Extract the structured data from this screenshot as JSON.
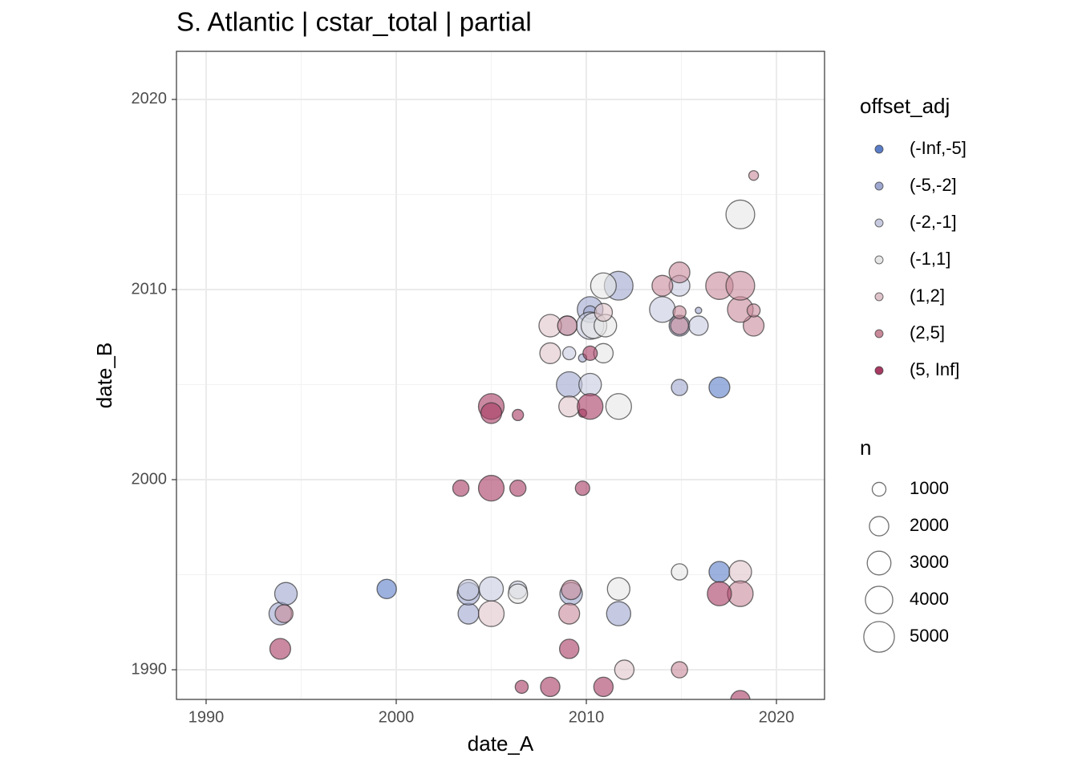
{
  "chart_data": {
    "type": "scatter",
    "title": "S. Atlantic | cstar_total | partial",
    "x_label": "date_A",
    "y_label": "date_B",
    "xlim": [
      1988.44,
      2022.53
    ],
    "ylim": [
      1988.44,
      2022.53
    ],
    "xticks": [
      1990,
      2000,
      2010,
      2020
    ],
    "yticks": [
      1990,
      2000,
      2010,
      2020
    ],
    "grid": true,
    "color_legend_title": "offset_adj",
    "size_legend_title": "n",
    "size_legend": [
      1000,
      2000,
      3000,
      4000,
      5000
    ],
    "series": [
      {
        "name": "(-Inf,-5]",
        "color": "#5a7dc8",
        "x": [
          1999.5,
          2017.0,
          2017.0
        ],
        "y": [
          1994.25,
          1995.15,
          2004.85
        ],
        "sizes": [
          2000,
          2300,
          2300
        ]
      },
      {
        "name": "(-5,-2]",
        "color": "#9ea7cf",
        "x": [
          1993.9,
          1994.2,
          2003.8,
          2011.7,
          2003.8,
          2009.2,
          2009.1,
          2014.9,
          2009.8,
          2014.9,
          2010.2,
          2010.2,
          2015.9,
          2011.7
        ],
        "y": [
          1992.95,
          1994.0,
          1992.95,
          1992.95,
          1994.0,
          1994.0,
          2005.0,
          2004.85,
          2006.4,
          2008.1,
          2008.95,
          2008.8,
          2008.9,
          2010.2
        ],
        "sizes": [
          2700,
          2700,
          2300,
          3100,
          2700,
          2700,
          3500,
          1400,
          350,
          2300,
          3500,
          900,
          220,
          4400
        ]
      },
      {
        "name": "(-2,-1]",
        "color": "#c7cadf",
        "x": [
          2003.8,
          2005.0,
          2006.4,
          2010.2,
          2009.1,
          2009.0,
          2010.2,
          2015.9,
          2014.0,
          2014.9
        ],
        "y": [
          1994.2,
          1994.25,
          1994.2,
          2005.0,
          2006.65,
          2008.1,
          2008.1,
          2008.1,
          2008.95,
          2010.2
        ],
        "sizes": [
          2300,
          3100,
          1700,
          2700,
          900,
          2000,
          4000,
          2000,
          3500,
          2300
        ]
      },
      {
        "name": "(-1,1]",
        "color": "#e6e6e6",
        "x": [
          2006.4,
          2011.7,
          2014.9,
          2011.7,
          2010.9,
          2010.4,
          2011.0,
          2010.9,
          2018.1
        ],
        "y": [
          1994.0,
          1994.25,
          1995.15,
          2003.85,
          2006.65,
          2008.1,
          2008.1,
          2010.2,
          2013.95
        ],
        "sizes": [
          2000,
          2700,
          1400,
          3500,
          2000,
          3500,
          2700,
          3500,
          4400
        ]
      },
      {
        "name": "(1,2]",
        "color": "#dfc3ca",
        "x": [
          2012.0,
          2005.0,
          2018.1,
          2009.1,
          2008.1,
          2008.1,
          2010.9
        ],
        "y": [
          1990.0,
          1992.95,
          1995.15,
          2003.85,
          2006.65,
          2008.1,
          2008.8
        ],
        "sizes": [
          2000,
          3500,
          2700,
          2300,
          2300,
          2700,
          1700
        ]
      },
      {
        "name": "(2,5]",
        "color": "#c88999",
        "x": [
          2014.9,
          1994.1,
          2009.1,
          2009.2,
          2018.1,
          2009.0,
          2014.9,
          2018.8,
          2014.9,
          2018.1,
          2018.8,
          2014.0,
          2014.9,
          2017.0,
          2018.1,
          2018.8
        ],
        "y": [
          1990.0,
          1992.95,
          1992.95,
          1994.2,
          1994.0,
          2008.1,
          2008.1,
          2008.1,
          2008.8,
          2008.95,
          2008.9,
          2010.2,
          2010.9,
          2010.2,
          2010.2,
          2016.0
        ],
        "sizes": [
          1400,
          1700,
          2300,
          2000,
          3500,
          2000,
          1700,
          2300,
          900,
          3500,
          900,
          2300,
          2300,
          4000,
          4400,
          500
        ]
      },
      {
        "name": "(5, Inf]",
        "color": "#a73a62",
        "x": [
          1993.9,
          2009.1,
          2006.6,
          2008.1,
          2010.9,
          2018.1,
          2017.0,
          2003.4,
          2005.0,
          2006.4,
          2009.8,
          2005.0,
          2005.0,
          2006.4,
          2009.8,
          2010.2,
          2010.2
        ],
        "y": [
          1991.1,
          1991.1,
          1989.1,
          1989.1,
          1989.1,
          1988.4,
          1994.0,
          1999.55,
          1999.55,
          1999.55,
          1999.55,
          2003.85,
          2003.5,
          2003.4,
          2003.5,
          2003.85,
          2006.65
        ],
        "sizes": [
          2300,
          2000,
          900,
          2000,
          2000,
          2000,
          3100,
          1400,
          3500,
          1400,
          1100,
          3500,
          2300,
          670,
          350,
          3500,
          1100
        ]
      }
    ]
  }
}
